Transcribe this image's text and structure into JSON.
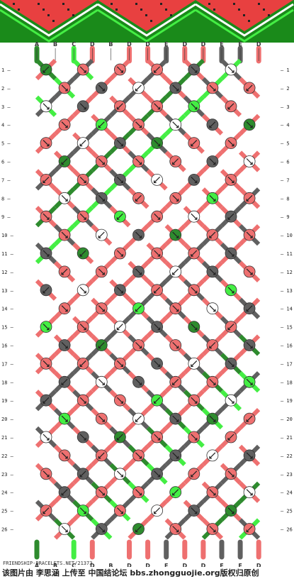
{
  "colors": {
    "A": "#2e8b2e",
    "B": "#ffffff",
    "C": "#44ee44",
    "D": "#ee7070",
    "E": "#606060",
    "banner_bg": "#1a8a1a",
    "banner_red": "#e84040"
  },
  "strings_top": [
    "A",
    "B",
    "C",
    "D",
    "B",
    "D",
    "D",
    "E",
    "D",
    "D",
    "E",
    "E",
    "D"
  ],
  "strings_bottom": [
    "A",
    "B",
    "C",
    "D",
    "B",
    "D",
    "D",
    "E",
    "D",
    "D",
    "E",
    "E",
    "D"
  ],
  "row_labels": [
    "1",
    "2",
    "3",
    "4",
    "5",
    "6",
    "7",
    "8",
    "9",
    "10",
    "11",
    "12",
    "13",
    "14",
    "15",
    "16",
    "17",
    "18",
    "19",
    "20",
    "21",
    "22",
    "23",
    "24",
    "25",
    "26"
  ],
  "credit_text": "FRIENDSHIP-BRACELETS.NET/21373",
  "footer_text": "该图片由 李思涵 上传至 中国结论坛 bbs.zhongguojie.org版权归原创"
}
